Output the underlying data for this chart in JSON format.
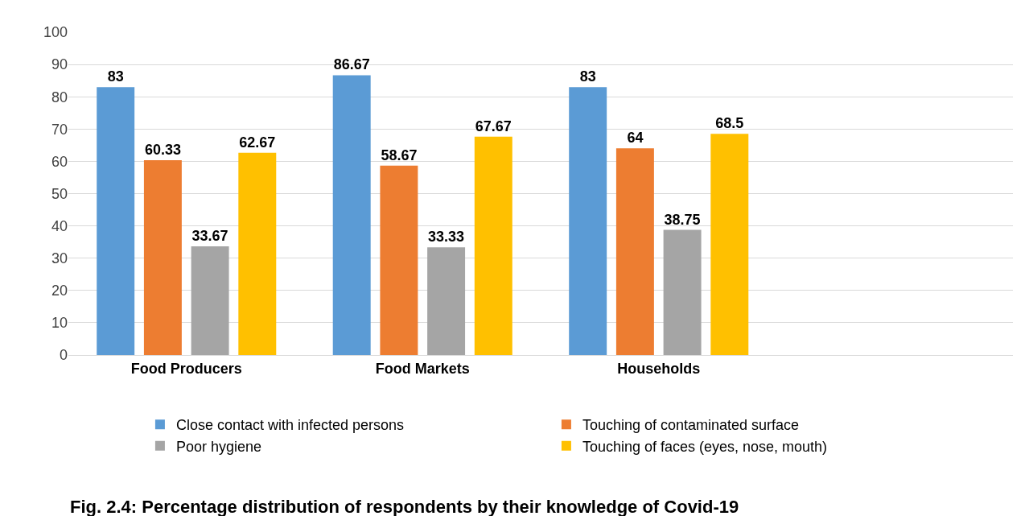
{
  "chart_data": {
    "type": "bar",
    "title": "Fig. 2.4: Percentage distribution of respondents by their knowledge of Covid-19",
    "categories": [
      "Food Producers",
      "Food Markets",
      "Households",
      null
    ],
    "series": [
      {
        "name": "Close contact with infected persons",
        "color": "#5b9bd5",
        "values": [
          83,
          86.67,
          83,
          null
        ]
      },
      {
        "name": "Touching of contaminated surface",
        "color": "#ed7d31",
        "values": [
          60.33,
          58.67,
          64,
          null
        ]
      },
      {
        "name": "Poor hygiene",
        "color": "#a5a5a5",
        "values": [
          33.67,
          33.33,
          38.75,
          null
        ]
      },
      {
        "name": "Touching of faces (eyes, nose, mouth)",
        "color": "#ffc000",
        "values": [
          62.67,
          67.67,
          68.5,
          null
        ]
      }
    ],
    "ylim": [
      0,
      100
    ],
    "yticks": [
      0,
      10,
      20,
      30,
      40,
      50,
      60,
      70,
      80,
      90,
      100
    ],
    "grid": "y",
    "legend": "bottom",
    "data_labels": true
  }
}
